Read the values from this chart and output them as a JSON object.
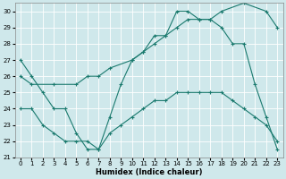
{
  "xlabel": "Humidex (Indice chaleur)",
  "bg_color": "#cfe8eb",
  "line_color": "#1a7a6e",
  "grid_color": "#ffffff",
  "xlim": [
    -0.5,
    23.5
  ],
  "ylim": [
    21,
    30.5
  ],
  "yticks": [
    21,
    22,
    23,
    24,
    25,
    26,
    27,
    28,
    29,
    30
  ],
  "xticks": [
    0,
    1,
    2,
    3,
    4,
    5,
    6,
    7,
    8,
    9,
    10,
    11,
    12,
    13,
    14,
    15,
    16,
    17,
    18,
    19,
    20,
    21,
    22,
    23
  ],
  "line1_x": [
    0,
    1,
    2,
    3,
    4,
    5,
    6,
    7,
    8,
    9,
    10,
    11,
    12,
    13,
    14,
    15,
    16,
    17,
    18,
    19,
    20,
    21,
    22,
    23
  ],
  "line1_y": [
    27,
    26,
    25,
    24,
    24,
    22.5,
    21.5,
    21.5,
    23.5,
    25.5,
    27,
    27.5,
    28.5,
    28.5,
    30,
    30,
    29.5,
    29.5,
    29,
    28,
    28,
    25.5,
    23.5,
    21.5
  ],
  "line2_x": [
    0,
    1,
    3,
    5,
    6,
    7,
    8,
    10,
    11,
    12,
    13,
    14,
    15,
    16,
    17,
    18,
    20,
    22,
    23
  ],
  "line2_y": [
    26,
    25.5,
    25.5,
    25.5,
    26,
    26,
    26.5,
    27,
    27.5,
    28,
    28.5,
    29,
    29.5,
    29.5,
    29.5,
    30,
    30.5,
    30,
    29
  ],
  "line3_x": [
    0,
    1,
    2,
    3,
    4,
    5,
    6,
    7,
    8,
    9,
    10,
    11,
    12,
    13,
    14,
    15,
    16,
    17,
    18,
    19,
    20,
    21,
    22,
    23
  ],
  "line3_y": [
    24,
    24,
    23,
    22.5,
    22,
    22,
    22,
    21.5,
    22.5,
    23,
    23.5,
    24,
    24.5,
    24.5,
    25,
    25,
    25,
    25,
    25,
    24.5,
    24,
    23.5,
    23,
    22
  ]
}
